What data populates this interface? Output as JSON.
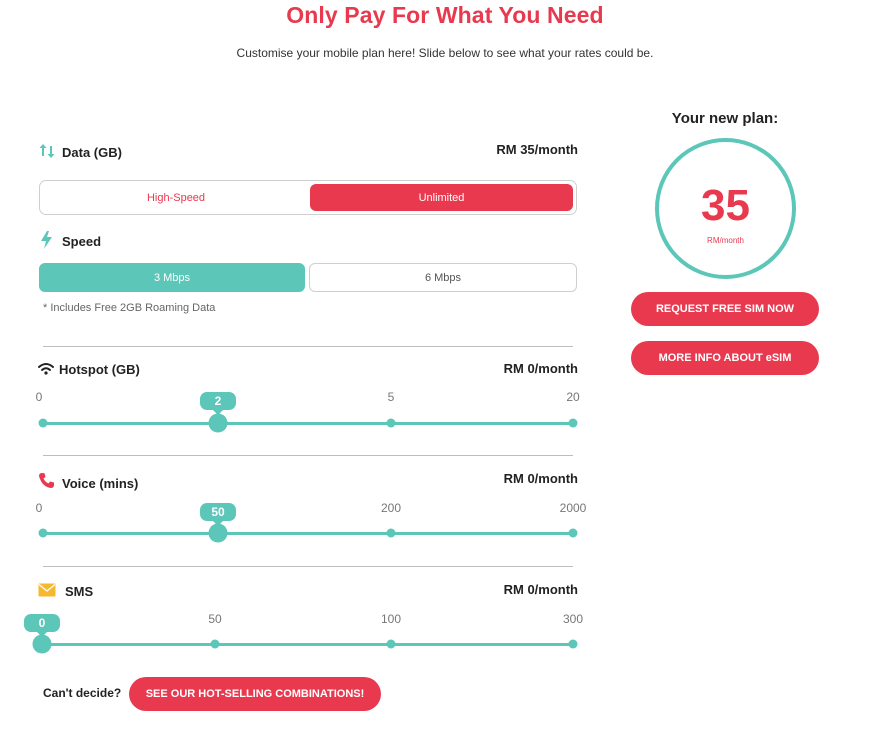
{
  "header": {
    "title": "Only Pay For What You Need",
    "subtitle": "Customise your mobile plan here! Slide below to see what your rates could be."
  },
  "data_section": {
    "label": "Data (GB)",
    "price": "RM 35/month",
    "options": [
      "High-Speed",
      "Unlimited"
    ],
    "selected": "Unlimited"
  },
  "speed_section": {
    "label": "Speed",
    "options": [
      "3 Mbps",
      "6 Mbps"
    ],
    "selected": "3 Mbps",
    "note": "* Includes Free 2GB Roaming Data"
  },
  "hotspot": {
    "label": "Hotspot (GB)",
    "price": "RM 0/month",
    "ticks": [
      "0",
      "",
      "5",
      "20"
    ],
    "value": "2",
    "selected_index": 1
  },
  "voice": {
    "label": "Voice (mins)",
    "price": "RM 0/month",
    "ticks": [
      "0",
      "",
      "200",
      "2000"
    ],
    "value": "50",
    "selected_index": 1
  },
  "sms": {
    "label": "SMS",
    "price": "RM 0/month",
    "ticks": [
      "",
      "50",
      "100",
      "300"
    ],
    "value": "0",
    "selected_index": 0
  },
  "footer": {
    "prompt": "Can't decide?",
    "combos_button": "SEE OUR HOT-SELLING COMBINATIONS!"
  },
  "plan": {
    "title": "Your new plan:",
    "amount": "35",
    "unit": "RM/month",
    "request_button": "REQUEST FREE SIM NOW",
    "esim_button": "MORE INFO ABOUT eSIM"
  },
  "colors": {
    "accent_red": "#e8394f",
    "accent_teal": "#5cc6b8",
    "voice_icon": "#e8394f",
    "sms_icon": "#f5b82e"
  },
  "icons": {
    "data": "up-down-arrows-icon",
    "speed": "lightning-icon",
    "hotspot": "wifi-icon",
    "voice": "phone-icon",
    "sms": "envelope-icon"
  }
}
